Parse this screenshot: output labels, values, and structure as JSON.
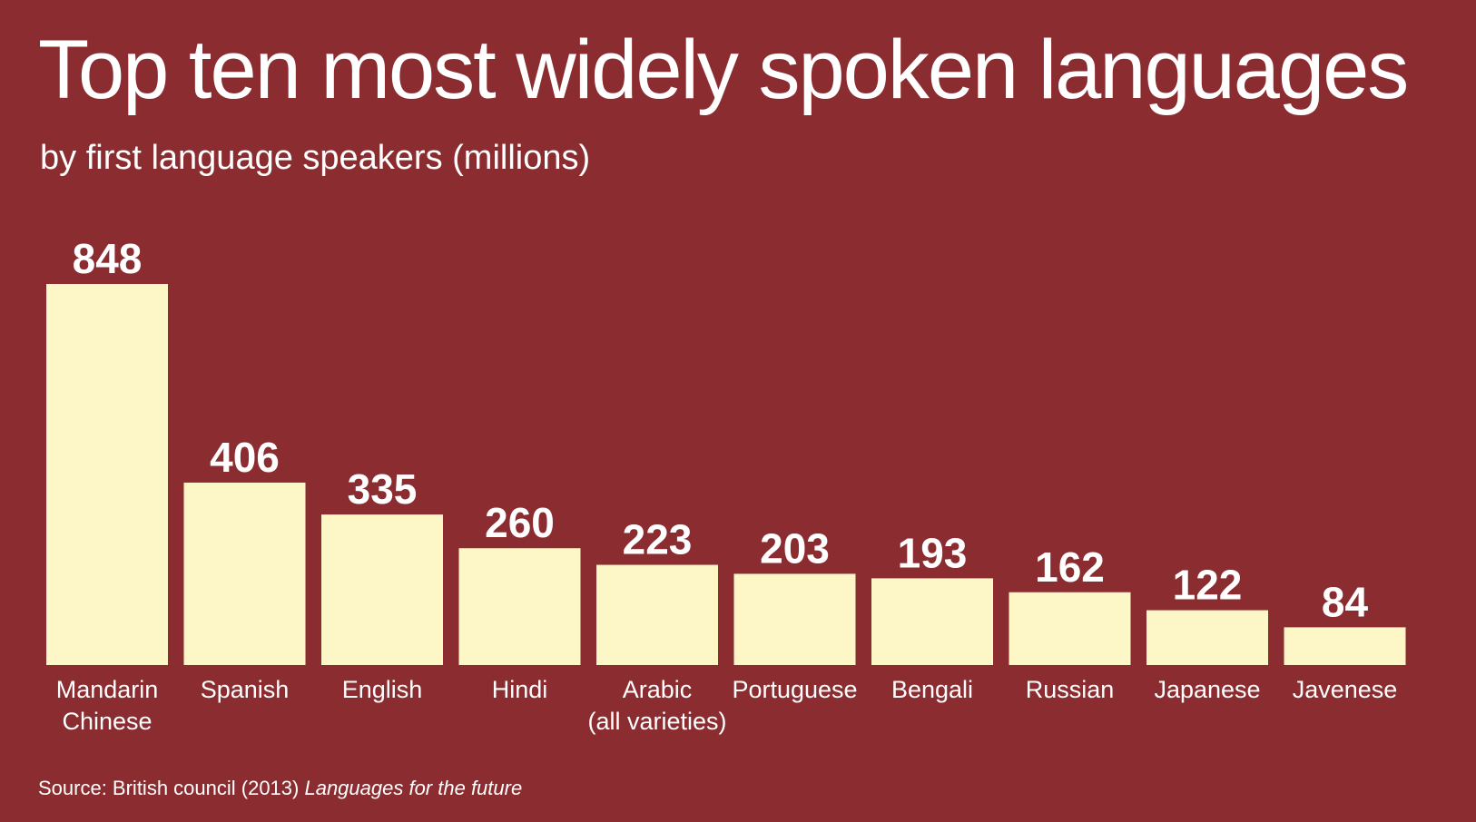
{
  "chart_data": {
    "type": "bar",
    "title": "Top ten most widely spoken languages",
    "subtitle": "by first language speakers (millions)",
    "categories": [
      "Mandarin\nChinese",
      "Spanish",
      "English",
      "Hindi",
      "Arabic\n(all varieties)",
      "Portuguese",
      "Bengali",
      "Russian",
      "Japanese",
      "Javenese"
    ],
    "values": [
      848,
      406,
      335,
      260,
      223,
      203,
      193,
      162,
      122,
      84
    ],
    "value_labels": [
      "848",
      "406",
      "335",
      "260",
      "223",
      "203",
      "193",
      "162",
      "122",
      "84"
    ],
    "ylim": [
      0,
      848
    ],
    "grid": false,
    "bar_color": "#fdf7c7",
    "background_color": "#8b2d30",
    "text_color": "#ffffff"
  },
  "source": {
    "prefix": "Source: British council (2013) ",
    "publication": "Languages for the future"
  }
}
